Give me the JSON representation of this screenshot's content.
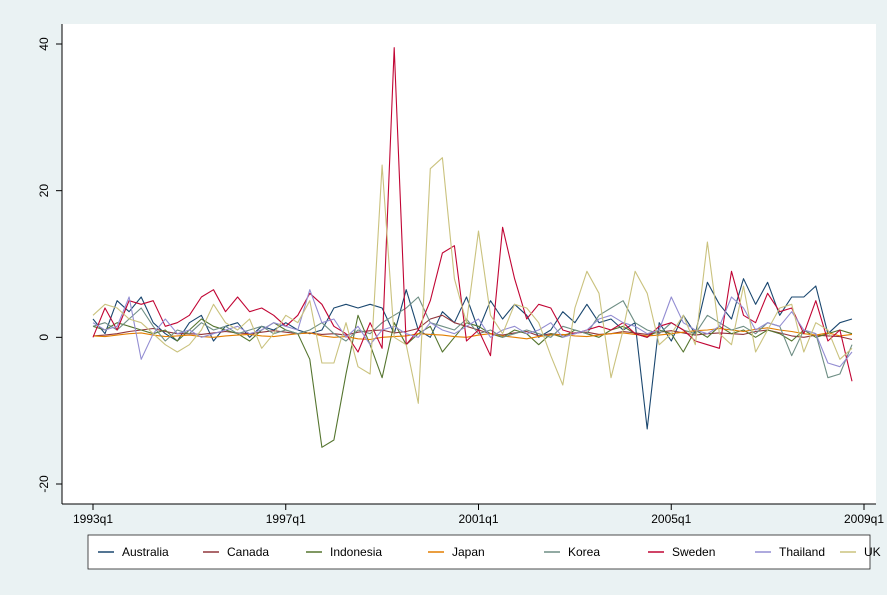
{
  "chart_data": {
    "type": "line",
    "title": "",
    "xlabel": "",
    "ylabel": "",
    "xlim": [
      "1993q1",
      "2008q4"
    ],
    "ylim": [
      -20,
      40
    ],
    "y_ticks": [
      -20,
      0,
      20,
      40
    ],
    "x_ticks": [
      "1993q1",
      "1997q1",
      "2001q1",
      "2005q1",
      "2009q1"
    ],
    "grid": false,
    "legend_position": "bottom",
    "x": [
      "1993q1",
      "1993q2",
      "1993q3",
      "1993q4",
      "1994q1",
      "1994q2",
      "1994q3",
      "1994q4",
      "1995q1",
      "1995q2",
      "1995q3",
      "1995q4",
      "1996q1",
      "1996q2",
      "1996q3",
      "1996q4",
      "1997q1",
      "1997q2",
      "1997q3",
      "1997q4",
      "1998q1",
      "1998q2",
      "1998q3",
      "1998q4",
      "1999q1",
      "1999q2",
      "1999q3",
      "1999q4",
      "2000q1",
      "2000q2",
      "2000q3",
      "2000q4",
      "2001q1",
      "2001q2",
      "2001q3",
      "2001q4",
      "2002q1",
      "2002q2",
      "2002q3",
      "2002q4",
      "2003q1",
      "2003q2",
      "2003q3",
      "2003q4",
      "2004q1",
      "2004q2",
      "2004q3",
      "2004q4",
      "2005q1",
      "2005q2",
      "2005q3",
      "2005q4",
      "2006q1",
      "2006q2",
      "2006q3",
      "2006q4",
      "2007q1",
      "2007q2",
      "2007q3",
      "2007q4",
      "2008q1",
      "2008q2",
      "2008q3",
      "2008q4"
    ],
    "series": [
      {
        "name": "Australia",
        "color": "#1a476f",
        "values": [
          2.5,
          0.5,
          5,
          3.5,
          5.5,
          2,
          0.5,
          -0.5,
          2,
          3,
          -0.5,
          1.5,
          2,
          0,
          1.5,
          1,
          2,
          1,
          0.5,
          1,
          4,
          4.5,
          4,
          4.5,
          4,
          0.5,
          6.5,
          1,
          0,
          3.5,
          2,
          5.5,
          1,
          5,
          2.5,
          4.5,
          3,
          0,
          1,
          3.5,
          2,
          4.5,
          2,
          2.5,
          1,
          2,
          -12.5,
          2,
          -0.5,
          3,
          0.5,
          7.5,
          4.5,
          2.5,
          8,
          4.5,
          7.5,
          3,
          5.5,
          5.5,
          7,
          0.5,
          2,
          2.5
        ]
      },
      {
        "name": "Canada",
        "color": "#90353b",
        "values": [
          0.2,
          0.3,
          0.5,
          0.8,
          1,
          1.2,
          0.8,
          0.5,
          0.5,
          0.4,
          0.6,
          0.8,
          0.6,
          0.5,
          0.7,
          0.9,
          0.7,
          0.5,
          0.6,
          0.4,
          0.5,
          0.3,
          0.7,
          0.9,
          1,
          0.6,
          0.8,
          1.2,
          2.5,
          3,
          2,
          1.5,
          1,
          0.5,
          0.3,
          0.6,
          0.8,
          0.2,
          0.5,
          0.3,
          0.6,
          0.7,
          0.4,
          0.5,
          0.8,
          0.6,
          0.4,
          0.7,
          0.9,
          0.6,
          0.3,
          0.5,
          0.6,
          0.5,
          0.4,
          0.8,
          1,
          0.6,
          0.2,
          0,
          0.3,
          0.2,
          0.1,
          -0.3
        ]
      },
      {
        "name": "Indonesia",
        "color": "#55752f",
        "values": [
          1.5,
          1,
          2,
          1.5,
          1,
          0.5,
          1,
          -0.5,
          1,
          2.5,
          1.5,
          1,
          0.5,
          -0.5,
          1,
          2,
          1,
          0.5,
          -3,
          -15,
          -14,
          -5,
          3,
          -1,
          -5.5,
          2,
          -1,
          0.5,
          1.5,
          -2,
          0,
          2,
          1.5,
          0.5,
          0,
          1,
          0.5,
          -1,
          0.5,
          0,
          1,
          0.5,
          0,
          1,
          1.5,
          0.5,
          0,
          1,
          0.5,
          -2,
          1,
          0,
          1.5,
          0.5,
          1,
          0,
          1,
          0.5,
          -0.5,
          1,
          0,
          0.5,
          1,
          0.5
        ]
      },
      {
        "name": "Japan",
        "color": "#e37e00",
        "values": [
          0.2,
          0.1,
          0.3,
          0.5,
          0.6,
          0.3,
          0.1,
          0.2,
          0.3,
          0.1,
          0,
          0.2,
          0.3,
          0.4,
          0.2,
          0.1,
          0.3,
          0.5,
          0.6,
          0.2,
          0,
          0.1,
          -0.2,
          -0.3,
          0,
          0.1,
          0.2,
          0.5,
          0.4,
          0.3,
          0.1,
          0,
          0.3,
          0.5,
          0.2,
          0,
          -0.2,
          0.1,
          0.3,
          0.4,
          0.2,
          0.1,
          0.3,
          0.5,
          0.6,
          0.4,
          0.2,
          0.3,
          0.5,
          0.7,
          0.9,
          1,
          1.2,
          1,
          0.8,
          1.1,
          1.3,
          1,
          0.8,
          0.5,
          0.3,
          0.6,
          0.2,
          0.4
        ]
      },
      {
        "name": "Korea",
        "color": "#6e8e84",
        "values": [
          1.5,
          2,
          1,
          2.5,
          4,
          1.5,
          -0.5,
          1,
          0.5,
          2,
          1,
          1.5,
          0.5,
          1,
          1.5,
          0.5,
          1,
          0.5,
          1,
          2,
          0.5,
          -0.5,
          1,
          0.5,
          2,
          3,
          4,
          5.5,
          2,
          1.5,
          1,
          2.5,
          0.5,
          1,
          0,
          0.5,
          1,
          0.5,
          0,
          1.5,
          1,
          0.5,
          3,
          4,
          5,
          2,
          1,
          0.5,
          2,
          1,
          0.5,
          3,
          2,
          1,
          1.5,
          0.5,
          2,
          1.5,
          -2.5,
          1,
          0.5,
          -5.5,
          -5,
          -1
        ]
      },
      {
        "name": "Sweden",
        "color": "#c10534",
        "values": [
          0,
          4,
          1,
          5,
          4.5,
          5,
          1.5,
          2,
          3,
          5.5,
          6.5,
          3.5,
          5.5,
          3.5,
          4,
          3,
          1.5,
          3,
          6,
          4.5,
          1.5,
          0.5,
          -2,
          2,
          -1.5,
          39.5,
          -1,
          1,
          5,
          11.5,
          12.5,
          -0.5,
          1,
          -2.5,
          15,
          8,
          2.5,
          4.5,
          4,
          1,
          0.5,
          1,
          1.5,
          1,
          2,
          0.5,
          0,
          1.5,
          2,
          1,
          -0.5,
          -1,
          -1.5,
          9,
          3,
          2,
          6,
          3.5,
          4,
          0.5,
          5,
          -0.5,
          1,
          -6
        ]
      },
      {
        "name": "Thailand",
        "color": "#938dd2",
        "values": [
          2,
          1,
          1.5,
          5.5,
          -3,
          0.5,
          2.5,
          0.5,
          1,
          0,
          0.5,
          1,
          1.5,
          0.5,
          1,
          2,
          1.5,
          1,
          6.5,
          2,
          2.5,
          0,
          1.5,
          -1,
          1,
          1.5,
          0.5,
          0,
          2,
          1,
          0.5,
          1.5,
          2.5,
          0,
          1,
          1.5,
          0.5,
          1,
          2,
          0,
          0.5,
          1,
          2.5,
          3,
          2,
          1.5,
          0.5,
          1,
          5.5,
          2,
          1,
          0.5,
          1.5,
          5.5,
          4,
          1,
          2,
          1.5,
          3.5,
          1,
          0.5,
          -3.5,
          -4,
          -2
        ]
      },
      {
        "name": "UK",
        "color": "#cac27e",
        "values": [
          3,
          4.5,
          4,
          2.5,
          2,
          0.5,
          -1,
          -2,
          -1,
          1,
          4.5,
          2,
          1,
          2.5,
          -1.5,
          0.5,
          3,
          2,
          5,
          -3.5,
          -3.5,
          2,
          -4,
          -5,
          23.5,
          0,
          -1,
          -9,
          23,
          24.5,
          8,
          2,
          14.5,
          3,
          0.5,
          4.5,
          4,
          2,
          -2.5,
          -6.5,
          4,
          9,
          6,
          -5.5,
          1,
          9,
          6,
          -1,
          0.5,
          3,
          -1,
          13,
          0.5,
          -1,
          7,
          -2,
          1,
          4,
          4.5,
          -2,
          2,
          1,
          -3,
          -1.5
        ]
      }
    ]
  }
}
